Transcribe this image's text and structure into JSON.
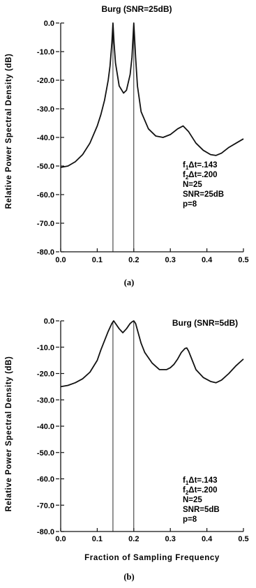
{
  "chart_data": [
    {
      "type": "line",
      "panel_label": "(a)",
      "title": "Burg (SNR=25dB)",
      "ylabel": "Relative Power Spectral Density (dB)",
      "xlabel": "",
      "xlim": [
        0.0,
        0.5
      ],
      "ylim": [
        -80.0,
        0.0
      ],
      "xticks": [
        "0.0",
        "0.1",
        "0.2",
        "0.3",
        "0.4",
        "0.5"
      ],
      "yticks": [
        "0.0",
        "-10.0",
        "-20.0",
        "-30.0",
        "-40.0",
        "-50.0",
        "-60.0",
        "-70.0",
        "-80.0"
      ],
      "markers_x": [
        0.143,
        0.2
      ],
      "params": {
        "f1": {
          "base": "f",
          "sub": "1",
          "rest": "Δt=.143"
        },
        "f2": {
          "base": "f",
          "sub": "2",
          "rest": "Δt=.200"
        },
        "n": "N=25",
        "snr": "SNR=25dB",
        "p": "p=8"
      },
      "series": [
        {
          "x": [
            0.0,
            0.02,
            0.04,
            0.06,
            0.08,
            0.1,
            0.11,
            0.12,
            0.13,
            0.135,
            0.14,
            0.143,
            0.146,
            0.15,
            0.16,
            0.172,
            0.18,
            0.19,
            0.195,
            0.2,
            0.205,
            0.21,
            0.22,
            0.24,
            0.26,
            0.28,
            0.3,
            0.32,
            0.335,
            0.35,
            0.37,
            0.39,
            0.41,
            0.425,
            0.44,
            0.46,
            0.48,
            0.5
          ],
          "values": [
            -50.5,
            -50.0,
            -48.5,
            -46.0,
            -42.0,
            -36.0,
            -32.0,
            -27.0,
            -20.0,
            -15.0,
            -7.0,
            0.0,
            -7.0,
            -14.0,
            -22.0,
            -24.5,
            -23.5,
            -18.0,
            -12.0,
            0.0,
            -12.0,
            -22.0,
            -31.0,
            -37.0,
            -39.5,
            -40.0,
            -39.0,
            -37.0,
            -36.0,
            -38.0,
            -42.0,
            -44.5,
            -46.0,
            -46.3,
            -45.5,
            -43.5,
            -42.0,
            -40.5
          ]
        }
      ]
    },
    {
      "type": "line",
      "panel_label": "(b)",
      "title": "Burg (SNR=5dB)",
      "ylabel": "Relative Power Spectral Density (dB)",
      "xlabel": "Fraction of Sampling Frequency",
      "xlim": [
        0.0,
        0.5
      ],
      "ylim": [
        -80.0,
        0.0
      ],
      "xticks": [
        "0.0",
        "0.1",
        "0.2",
        "0.3",
        "0.4",
        "0.5"
      ],
      "yticks": [
        "0.0",
        "-10.0",
        "-20.0",
        "-30.0",
        "-40.0",
        "-50.0",
        "-60.0",
        "-70.0",
        "-80.0"
      ],
      "markers_x": [
        0.143,
        0.2
      ],
      "params": {
        "f1": {
          "base": "f",
          "sub": "1",
          "rest": "Δt=.143"
        },
        "f2": {
          "base": "f",
          "sub": "2",
          "rest": "Δt=.200"
        },
        "n": "N=25",
        "snr": "SNR=5dB",
        "p": "p=8"
      },
      "series": [
        {
          "x": [
            0.0,
            0.02,
            0.04,
            0.06,
            0.08,
            0.1,
            0.11,
            0.12,
            0.13,
            0.14,
            0.145,
            0.15,
            0.16,
            0.17,
            0.18,
            0.19,
            0.195,
            0.2,
            0.205,
            0.21,
            0.22,
            0.23,
            0.25,
            0.27,
            0.29,
            0.3,
            0.31,
            0.32,
            0.33,
            0.34,
            0.345,
            0.35,
            0.36,
            0.37,
            0.39,
            0.41,
            0.425,
            0.44,
            0.46,
            0.48,
            0.5
          ],
          "values": [
            -25.0,
            -24.5,
            -23.5,
            -22.0,
            -19.5,
            -15.0,
            -11.0,
            -7.5,
            -4.0,
            -1.0,
            0.0,
            -1.0,
            -3.0,
            -4.5,
            -3.0,
            -1.0,
            -0.4,
            0.0,
            -1.0,
            -3.5,
            -8.5,
            -12.0,
            -16.0,
            -18.5,
            -18.5,
            -17.8,
            -16.5,
            -14.5,
            -12.0,
            -10.5,
            -10.3,
            -11.5,
            -15.0,
            -18.5,
            -21.5,
            -23.0,
            -23.5,
            -22.5,
            -20.0,
            -17.0,
            -14.5
          ]
        }
      ]
    }
  ]
}
